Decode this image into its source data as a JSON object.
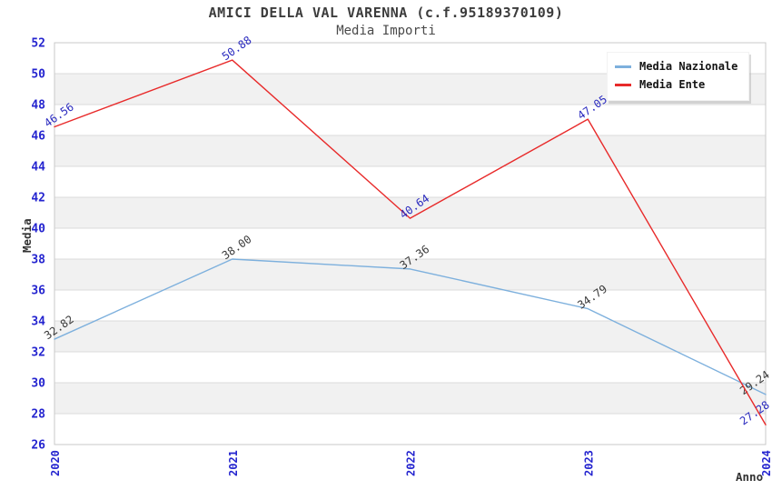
{
  "header": {
    "title": "AMICI DELLA VAL VARENNA (c.f.95189370109)",
    "subtitle": "Media Importi"
  },
  "chart_data": {
    "type": "line",
    "title": "AMICI DELLA VAL VARENNA (c.f.95189370109)",
    "subtitle": "Media Importi",
    "xlabel": "Anno",
    "ylabel": "Media",
    "categories": [
      "2020",
      "2021",
      "2022",
      "2023",
      "2024"
    ],
    "series": [
      {
        "name": "Media Nazionale",
        "color": "#7db0dd",
        "label_color": "#3a3a3a",
        "values": [
          32.82,
          38.0,
          37.36,
          34.79,
          29.24
        ]
      },
      {
        "name": "Media Ente",
        "color": "#e82a2a",
        "label_color": "#2a2abf",
        "values": [
          46.56,
          50.88,
          40.64,
          47.05,
          27.28
        ]
      }
    ],
    "ylim": [
      26,
      52
    ],
    "yticks": [
      26,
      28,
      30,
      32,
      34,
      36,
      38,
      40,
      42,
      44,
      46,
      48,
      50,
      52
    ],
    "value_label_decimals": 2,
    "grid": true,
    "row_bands": true,
    "legend_position": "top-right",
    "colors": {
      "tick_label": "#2424cf",
      "axis_title": "#333333",
      "band": "#f1f1f1",
      "gridline": "#dbdbdb",
      "frame": "#c9c9c9"
    }
  },
  "legend": {
    "items": [
      {
        "label": "Media Nazionale",
        "color": "#7db0dd"
      },
      {
        "label": "Media Ente",
        "color": "#e82a2a"
      }
    ]
  }
}
